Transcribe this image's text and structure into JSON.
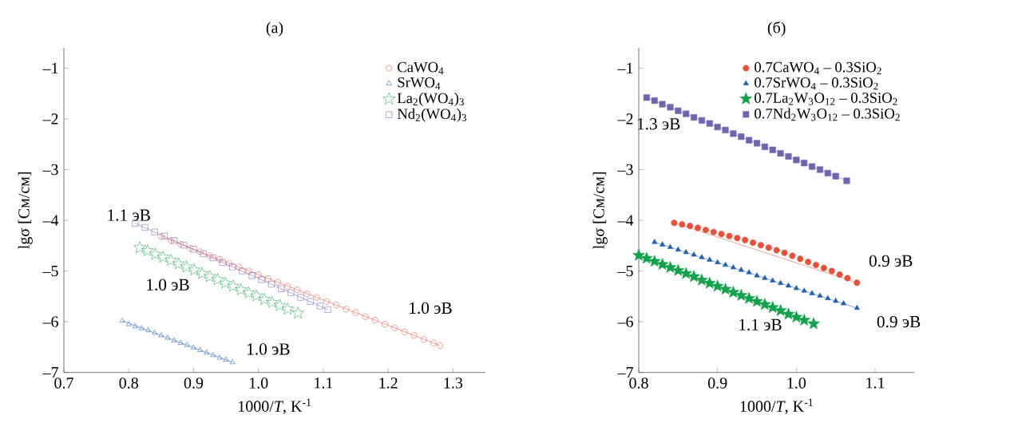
{
  "chart_data": [
    {
      "type": "scatter",
      "title": "(а)",
      "xlabel": "1000/*T*, K$^{-1}$",
      "ylabel": "lgσ [См/см]",
      "xlim": [
        0.7,
        1.35
      ],
      "ylim": [
        -7,
        -0.6
      ],
      "xticks": [
        {
          "value": 0.7,
          "label": "0.7"
        },
        {
          "value": 0.8,
          "label": "0.8"
        },
        {
          "value": 0.9,
          "label": "0.9"
        },
        {
          "value": 1.0,
          "label": "1.0"
        },
        {
          "value": 1.1,
          "label": "1.1"
        },
        {
          "value": 1.2,
          "label": "1.2"
        },
        {
          "value": 1.3,
          "label": "1.3"
        }
      ],
      "yticks": [
        {
          "value": -7,
          "label": "–7"
        },
        {
          "value": -6,
          "label": "–6"
        },
        {
          "value": -5,
          "label": "–5"
        },
        {
          "value": -4,
          "label": "–4"
        },
        {
          "value": -3,
          "label": "–3"
        },
        {
          "value": -2,
          "label": "–2"
        },
        {
          "value": -1,
          "label": "–1"
        }
      ],
      "legend": "top right",
      "series": [
        {
          "name": "CaWO$_{4}$",
          "type": "scatter",
          "marker": "circle",
          "color": "#e8503a",
          "x": [
            0.85,
            0.865,
            0.88,
            0.895,
            0.91,
            0.925,
            0.94,
            0.955,
            0.97,
            0.985,
            1.0,
            1.015,
            1.03,
            1.045,
            1.06,
            1.075,
            1.09,
            1.105,
            1.12,
            1.135,
            1.15,
            1.165,
            1.18,
            1.195,
            1.21,
            1.225,
            1.24,
            1.255,
            1.27,
            1.28
          ],
          "values": [
            -4.32,
            -4.4,
            -4.47,
            -4.55,
            -4.62,
            -4.7,
            -4.77,
            -4.85,
            -4.92,
            -5.0,
            -5.07,
            -5.15,
            -5.22,
            -5.3,
            -5.37,
            -5.45,
            -5.52,
            -5.6,
            -5.67,
            -5.75,
            -5.82,
            -5.9,
            -5.97,
            -6.05,
            -6.12,
            -6.2,
            -6.27,
            -6.35,
            -6.42,
            -6.47
          ]
        },
        {
          "name": "SrWO$_{4}$",
          "type": "scatter",
          "marker": "triangle",
          "color": "#1f5fb0",
          "x": [
            0.79,
            0.8,
            0.81,
            0.82,
            0.83,
            0.84,
            0.85,
            0.86,
            0.87,
            0.88,
            0.89,
            0.9,
            0.91,
            0.92,
            0.93,
            0.94,
            0.95,
            0.96
          ],
          "values": [
            -5.98,
            -6.05,
            -6.09,
            -6.13,
            -6.17,
            -6.22,
            -6.27,
            -6.32,
            -6.37,
            -6.42,
            -6.46,
            -6.51,
            -6.56,
            -6.61,
            -6.66,
            -6.71,
            -6.75,
            -6.8
          ]
        },
        {
          "name": "La$_{2}$(WO$_{4}$)$_{3}$",
          "type": "scatter",
          "marker": "star",
          "color": "#12a24b",
          "x": [
            0.817,
            0.829,
            0.841,
            0.853,
            0.865,
            0.877,
            0.889,
            0.901,
            0.913,
            0.925,
            0.937,
            0.949,
            0.961,
            0.973,
            0.985,
            0.997,
            1.009,
            1.021,
            1.033,
            1.045,
            1.061
          ],
          "values": [
            -4.54,
            -4.6,
            -4.67,
            -4.73,
            -4.79,
            -4.86,
            -4.92,
            -4.98,
            -5.05,
            -5.11,
            -5.17,
            -5.24,
            -5.3,
            -5.37,
            -5.43,
            -5.49,
            -5.56,
            -5.62,
            -5.68,
            -5.75,
            -5.83
          ]
        },
        {
          "name": "Nd$_{2}$(WO$_{4}$)$_{3}$",
          "type": "scatter",
          "marker": "square",
          "color": "#7263b0",
          "x": [
            0.81,
            0.825,
            0.84,
            0.855,
            0.87,
            0.885,
            0.9,
            0.915,
            0.93,
            0.945,
            0.96,
            0.975,
            0.99,
            1.005,
            1.02,
            1.035,
            1.05,
            1.065,
            1.08,
            1.095,
            1.107
          ],
          "values": [
            -4.06,
            -4.14,
            -4.23,
            -4.31,
            -4.4,
            -4.49,
            -4.57,
            -4.66,
            -4.74,
            -4.83,
            -4.92,
            -5.0,
            -5.09,
            -5.17,
            -5.26,
            -5.35,
            -5.43,
            -5.52,
            -5.6,
            -5.69,
            -5.76
          ]
        },
        {
          "type": "line",
          "color": "#e8503a",
          "x": [
            0.85,
            1.28
          ],
          "values": [
            -4.32,
            -6.47
          ]
        },
        {
          "type": "line",
          "color": "#1f5fb0",
          "x": [
            0.79,
            0.96
          ],
          "values": [
            -5.98,
            -6.8
          ]
        },
        {
          "type": "line",
          "color": "#12a24b",
          "x": [
            0.817,
            1.061
          ],
          "values": [
            -4.54,
            -5.83
          ]
        },
        {
          "type": "line",
          "color": "#7263b0",
          "x": [
            0.81,
            1.107
          ],
          "values": [
            -4.06,
            -5.76
          ]
        }
      ],
      "annotations": [
        "1.1 эВ",
        "1.0 эВ",
        "1.0 эВ",
        "1.0 эВ"
      ]
    },
    {
      "type": "scatter",
      "title": "(б)",
      "xlabel": "1000/*T*, K$^{-1}$",
      "ylabel": "lgσ [См/см]",
      "xlim": [
        0.8,
        1.15
      ],
      "ylim": [
        -7,
        -0.6
      ],
      "xticks": [
        {
          "value": 0.8,
          "label": "0.8"
        },
        {
          "value": 0.9,
          "label": "0.9"
        },
        {
          "value": 1.0,
          "label": "1.0"
        },
        {
          "value": 1.1,
          "label": "1.1"
        }
      ],
      "yticks": [
        {
          "value": -7,
          "label": "–7"
        },
        {
          "value": -6,
          "label": "–6"
        },
        {
          "value": -5,
          "label": "–5"
        },
        {
          "value": -4,
          "label": "–4"
        },
        {
          "value": -3,
          "label": "–3"
        },
        {
          "value": -2,
          "label": "–2"
        },
        {
          "value": -1,
          "label": "–1"
        }
      ],
      "legend": "top right",
      "series": [
        {
          "name": "0.7CaWO$_{4}$ – 0.3SiO$_{2}$",
          "type": "scatter",
          "marker": "circle",
          "color": "#e8503a",
          "x": [
            0.845,
            0.855,
            0.865,
            0.875,
            0.885,
            0.895,
            0.905,
            0.915,
            0.925,
            0.935,
            0.945,
            0.955,
            0.965,
            0.975,
            0.985,
            0.995,
            1.005,
            1.015,
            1.025,
            1.035,
            1.045,
            1.055,
            1.065,
            1.077
          ],
          "values": [
            -4.05,
            -4.08,
            -4.11,
            -4.15,
            -4.19,
            -4.23,
            -4.27,
            -4.31,
            -4.35,
            -4.39,
            -4.44,
            -4.49,
            -4.54,
            -4.59,
            -4.64,
            -4.7,
            -4.76,
            -4.82,
            -4.88,
            -4.94,
            -5.0,
            -5.07,
            -5.14,
            -5.23
          ]
        },
        {
          "name": "0.7SrWO$_{4}$ – 0.3SiO$_{2}$",
          "type": "scatter",
          "marker": "triangle",
          "color": "#1f5fb0",
          "x": [
            0.82,
            0.83,
            0.84,
            0.85,
            0.86,
            0.87,
            0.88,
            0.89,
            0.9,
            0.91,
            0.92,
            0.93,
            0.94,
            0.95,
            0.96,
            0.97,
            0.98,
            0.99,
            1.0,
            1.01,
            1.02,
            1.03,
            1.04,
            1.05,
            1.06,
            1.077
          ],
          "values": [
            -4.43,
            -4.48,
            -4.53,
            -4.58,
            -4.63,
            -4.68,
            -4.73,
            -4.78,
            -4.83,
            -4.88,
            -4.93,
            -4.98,
            -5.03,
            -5.09,
            -5.14,
            -5.19,
            -5.24,
            -5.29,
            -5.34,
            -5.39,
            -5.44,
            -5.49,
            -5.54,
            -5.59,
            -5.64,
            -5.73
          ]
        },
        {
          "name": "0.7La$_{2}$W$_{3}$O$_{12}$ – 0.3SiO$_{2}$",
          "type": "scatter",
          "marker": "star",
          "color": "#12a24b",
          "x": [
            0.8,
            0.81,
            0.82,
            0.83,
            0.84,
            0.85,
            0.86,
            0.87,
            0.88,
            0.89,
            0.9,
            0.91,
            0.92,
            0.93,
            0.94,
            0.95,
            0.96,
            0.97,
            0.98,
            0.99,
            1.0,
            1.01,
            1.022
          ],
          "values": [
            -4.69,
            -4.75,
            -4.81,
            -4.87,
            -4.93,
            -4.99,
            -5.05,
            -5.11,
            -5.18,
            -5.24,
            -5.3,
            -5.36,
            -5.42,
            -5.48,
            -5.54,
            -5.6,
            -5.66,
            -5.72,
            -5.78,
            -5.85,
            -5.91,
            -5.97,
            -6.04
          ]
        },
        {
          "name": "0.7Nd$_{2}$W$_{3}$O$_{12}$ – 0.3SiO$_{2}$",
          "type": "scatter",
          "marker": "square",
          "color": "#7263b0",
          "x": [
            0.81,
            0.82,
            0.83,
            0.84,
            0.85,
            0.86,
            0.87,
            0.88,
            0.89,
            0.9,
            0.91,
            0.92,
            0.93,
            0.94,
            0.95,
            0.96,
            0.97,
            0.98,
            0.99,
            1.0,
            1.01,
            1.02,
            1.03,
            1.04,
            1.05,
            1.064
          ],
          "values": [
            -1.58,
            -1.64,
            -1.71,
            -1.77,
            -1.84,
            -1.9,
            -1.97,
            -2.03,
            -2.09,
            -2.16,
            -2.22,
            -2.29,
            -2.35,
            -2.42,
            -2.48,
            -2.55,
            -2.61,
            -2.68,
            -2.74,
            -2.81,
            -2.87,
            -2.94,
            -3.0,
            -3.07,
            -3.13,
            -3.22
          ]
        },
        {
          "type": "line",
          "color": "#e8503a",
          "x": [
            0.845,
            1.077
          ],
          "values": [
            -4.05,
            -5.23
          ]
        },
        {
          "type": "line",
          "color": "#1f5fb0",
          "x": [
            0.82,
            1.077
          ],
          "values": [
            -4.43,
            -5.73
          ]
        },
        {
          "type": "line",
          "color": "#12a24b",
          "x": [
            0.8,
            1.022
          ],
          "values": [
            -4.69,
            -6.04
          ]
        },
        {
          "type": "line",
          "color": "#7263b0",
          "x": [
            0.81,
            1.064
          ],
          "values": [
            -1.58,
            -3.22
          ]
        }
      ],
      "annotations": [
        "1.3 эВ",
        "0.9 эВ",
        "0.9 эВ",
        "1.1 эВ"
      ]
    }
  ]
}
